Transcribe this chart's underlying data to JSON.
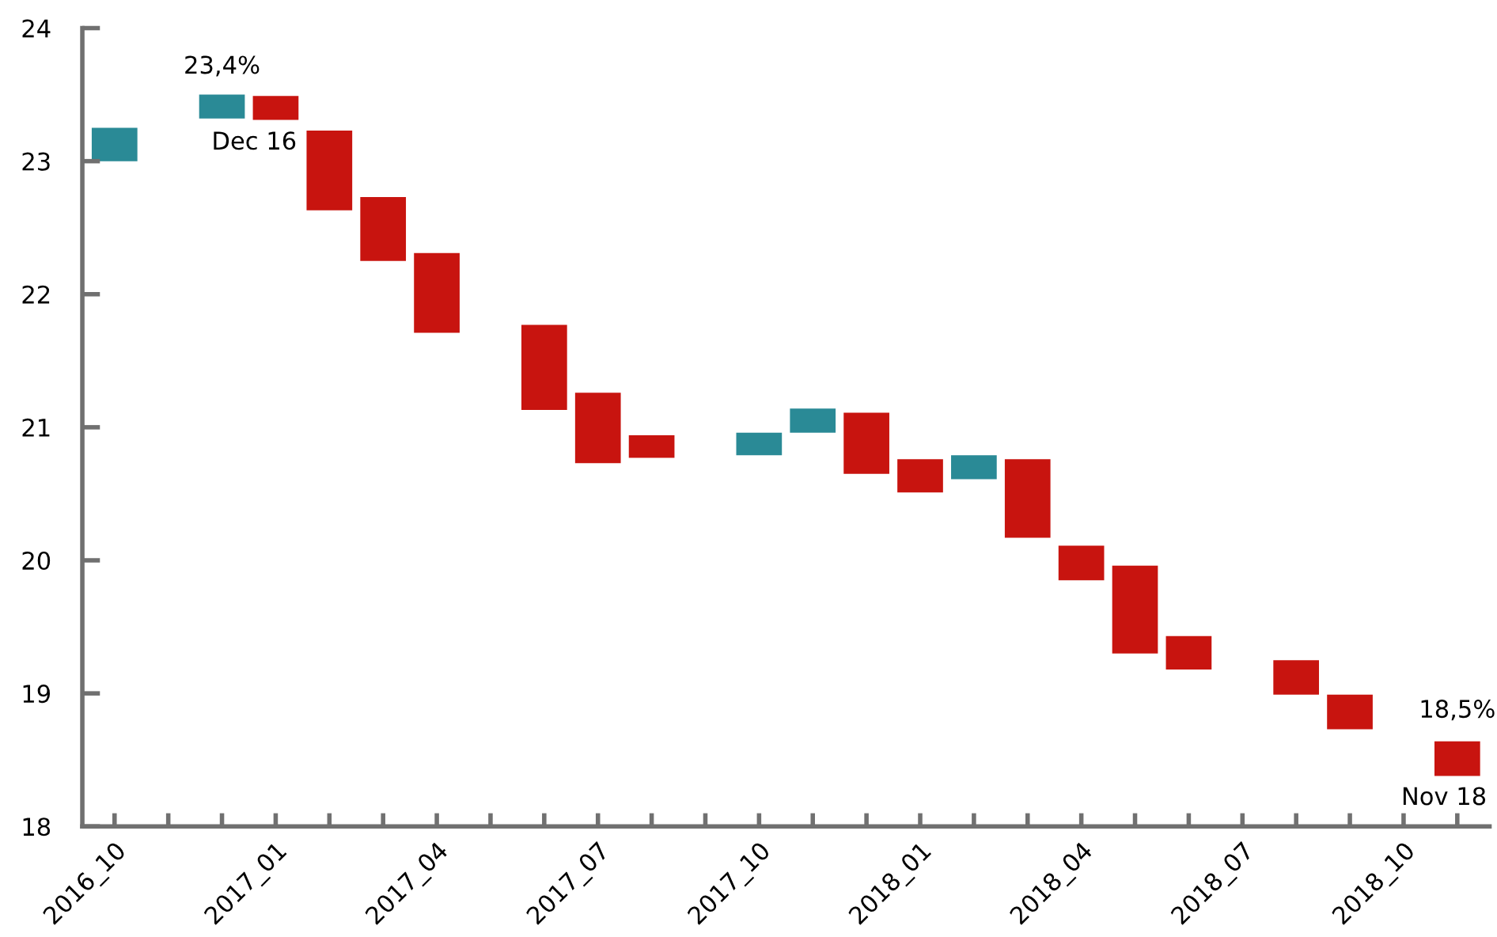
{
  "chart_data": {
    "type": "bar",
    "categories": [
      "2016_10",
      null,
      null,
      "2017_01",
      null,
      null,
      "2017_04",
      null,
      null,
      "2017_07",
      null,
      null,
      "2017_10",
      null,
      null,
      "2018_01",
      null,
      null,
      "2018_04",
      null,
      null,
      "2018_07",
      null,
      null,
      "2018_10",
      null
    ],
    "base": [
      23.0,
      null,
      23.32,
      23.31,
      22.63,
      22.25,
      21.71,
      null,
      21.13,
      20.73,
      20.77,
      null,
      20.79,
      20.96,
      20.65,
      20.51,
      20.61,
      20.17,
      19.85,
      19.3,
      19.18,
      null,
      18.99,
      18.73,
      null,
      18.38
    ],
    "values": [
      0.25,
      null,
      0.18,
      0.18,
      0.6,
      0.48,
      0.6,
      null,
      0.64,
      0.53,
      0.17,
      null,
      0.17,
      0.18,
      0.46,
      0.25,
      0.18,
      0.59,
      0.26,
      0.66,
      0.25,
      null,
      0.26,
      0.26,
      null,
      0.26
    ],
    "colors": [
      "#2a8a96",
      null,
      "#2a8a96",
      "#c8140f",
      "#c8140f",
      "#c8140f",
      "#c8140f",
      null,
      "#c8140f",
      "#c8140f",
      "#c8140f",
      null,
      "#2a8a96",
      "#2a8a96",
      "#c8140f",
      "#c8140f",
      "#2a8a96",
      "#c8140f",
      "#c8140f",
      "#c8140f",
      "#c8140f",
      null,
      "#c8140f",
      "#c8140f",
      null,
      "#c8140f"
    ],
    "annotations": [
      "23,4%",
      "Dec 16",
      "18,5%",
      "Nov 18"
    ],
    "ylim": [
      18,
      24
    ],
    "yticks": [
      18,
      19,
      20,
      21,
      22,
      23,
      24
    ],
    "grid": false,
    "legend": false
  }
}
